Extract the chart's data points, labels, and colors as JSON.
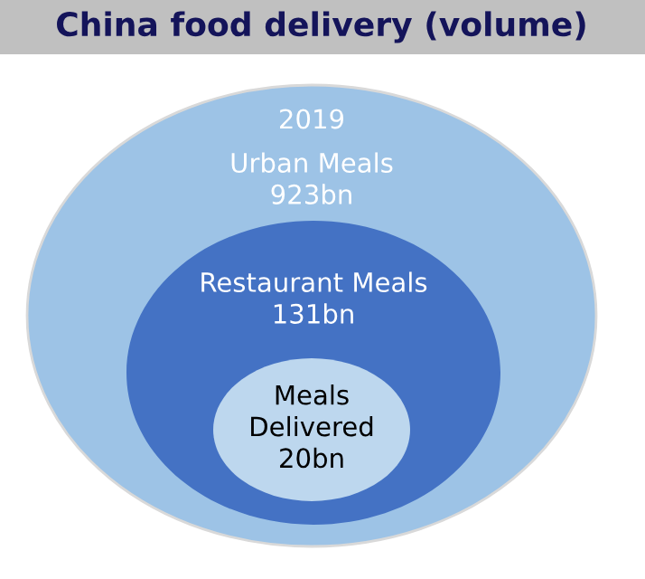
{
  "chart_data": {
    "type": "other",
    "title": "China food delivery (volume)",
    "categories": [
      "Urban Meals",
      "Restaurant Meals",
      "Meals\nDelivered"
    ],
    "values": [
      923,
      131,
      20
    ],
    "value_labels": [
      "923bn",
      "131bn",
      "20bn"
    ],
    "colors": [
      "#9dc3e6",
      "#4472c4",
      "#bdd7ee"
    ],
    "annotations": [
      "2019"
    ]
  }
}
